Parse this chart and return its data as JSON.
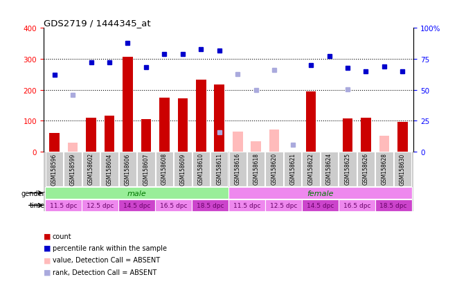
{
  "title": "GDS2719 / 1444345_at",
  "samples": [
    "GSM158596",
    "GSM158599",
    "GSM158602",
    "GSM158604",
    "GSM158606",
    "GSM158607",
    "GSM158608",
    "GSM158609",
    "GSM158610",
    "GSM158611",
    "GSM158616",
    "GSM158618",
    "GSM158620",
    "GSM158621",
    "GSM158622",
    "GSM158624",
    "GSM158625",
    "GSM158626",
    "GSM158628",
    "GSM158630"
  ],
  "count_values": [
    60,
    0,
    110,
    115,
    307,
    105,
    175,
    173,
    232,
    217,
    0,
    0,
    0,
    0,
    195,
    0,
    107,
    110,
    0,
    95
  ],
  "count_absent": [
    0,
    28,
    0,
    0,
    0,
    0,
    0,
    0,
    0,
    0,
    65,
    32,
    72,
    0,
    0,
    0,
    0,
    0,
    50,
    0
  ],
  "rank_values": [
    248,
    0,
    288,
    288,
    352,
    272,
    315,
    315,
    332,
    328,
    0,
    0,
    0,
    0,
    280,
    310,
    270,
    260,
    275,
    260
  ],
  "rank_absent": [
    0,
    183,
    0,
    0,
    0,
    0,
    0,
    0,
    0,
    62,
    250,
    200,
    265,
    22,
    0,
    0,
    202,
    0,
    0,
    0
  ],
  "gender_groups": [
    {
      "label": "male",
      "start": 0,
      "end": 9,
      "color": "#99ee99"
    },
    {
      "label": "female",
      "start": 10,
      "end": 19,
      "color": "#ee88ee"
    }
  ],
  "time_groups": [
    {
      "label": "11.5 dpc",
      "start": 0,
      "end": 1,
      "color": "#ee88ee"
    },
    {
      "label": "12.5 dpc",
      "start": 2,
      "end": 3,
      "color": "#ee88ee"
    },
    {
      "label": "14.5 dpc",
      "start": 4,
      "end": 5,
      "color": "#cc44cc"
    },
    {
      "label": "16.5 dpc",
      "start": 6,
      "end": 7,
      "color": "#ee88ee"
    },
    {
      "label": "18.5 dpc",
      "start": 8,
      "end": 9,
      "color": "#cc44cc"
    },
    {
      "label": "11.5 dpc",
      "start": 10,
      "end": 11,
      "color": "#ee88ee"
    },
    {
      "label": "12.5 dpc",
      "start": 12,
      "end": 13,
      "color": "#ee88ee"
    },
    {
      "label": "14.5 dpc",
      "start": 14,
      "end": 15,
      "color": "#cc44cc"
    },
    {
      "label": "16.5 dpc",
      "start": 16,
      "end": 17,
      "color": "#ee88ee"
    },
    {
      "label": "18.5 dpc",
      "start": 18,
      "end": 19,
      "color": "#cc44cc"
    }
  ],
  "ylim_left": [
    0,
    400
  ],
  "ylim_right": [
    0,
    100
  ],
  "yticks_left": [
    0,
    100,
    200,
    300,
    400
  ],
  "yticks_right": [
    0,
    25,
    50,
    75,
    100
  ],
  "bar_color": "#cc0000",
  "bar_absent_color": "#ffbbbb",
  "rank_color": "#0000cc",
  "rank_absent_color": "#aaaadd",
  "bg_color": "#ffffff",
  "legend_items": [
    {
      "color": "#cc0000",
      "marker": "s",
      "label": "count"
    },
    {
      "color": "#0000cc",
      "marker": "s",
      "label": "percentile rank within the sample"
    },
    {
      "color": "#ffbbbb",
      "marker": "s",
      "label": "value, Detection Call = ABSENT"
    },
    {
      "color": "#aaaadd",
      "marker": "s",
      "label": "rank, Detection Call = ABSENT"
    }
  ]
}
